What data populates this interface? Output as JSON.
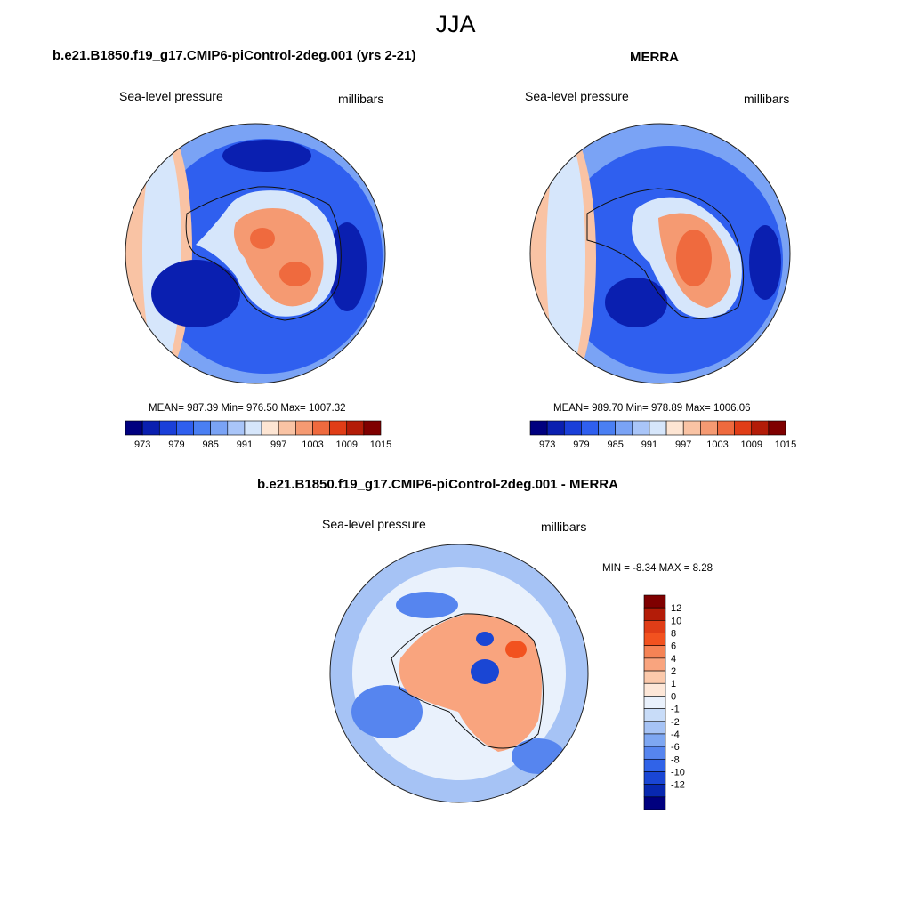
{
  "figure": {
    "title": "JJA"
  },
  "panels": {
    "model": {
      "title": "b.e21.B1850.f19_g17.CMIP6-piControl-2deg.001 (yrs 2-21)",
      "left_label": "Sea-level pressure",
      "right_label": "millibars",
      "stats_text": "MEAN= 987.39  Min= 976.50  Max= 1007.32"
    },
    "obs": {
      "title": "MERRA",
      "left_label": "Sea-level pressure",
      "right_label": "millibars",
      "stats_text": "MEAN= 989.70  Min= 978.89  Max= 1006.06"
    },
    "diff": {
      "title": "b.e21.B1850.f19_g17.CMIP6-piControl-2deg.001 - MERRA",
      "left_label": "Sea-level pressure",
      "right_label": "millibars",
      "stats_text": "MIN =  -8.34 MAX =   8.28"
    }
  },
  "colors": {
    "abs_scale": [
      "#00007f",
      "#0a1fb0",
      "#1a3fd9",
      "#2f5fef",
      "#4a7ff3",
      "#7aa3f5",
      "#a9c5f8",
      "#d6e6fb",
      "#fde5d3",
      "#f9c3a4",
      "#f59a72",
      "#ef6a3e",
      "#e03d17",
      "#b31c08",
      "#7f0000"
    ],
    "diff_scale": [
      "#7f0000",
      "#b31c08",
      "#e03d17",
      "#f2521f",
      "#f58355",
      "#f9a47e",
      "#fbc9ab",
      "#fde7d8",
      "#e9f1fc",
      "#c8dcf8",
      "#a6c3f5",
      "#7ea7f2",
      "#5685ef",
      "#3063e8",
      "#1a46d4",
      "#0828b0",
      "#00007f"
    ],
    "ocean_light": "#d6e6fb",
    "ocean_mid": "#7aa3f5",
    "ocean_deep": "#2f5fef",
    "high_low": "#f59a72",
    "high_core": "#ef6a3e"
  },
  "chart_data": [
    {
      "type": "heatmap",
      "name": "model",
      "title": "b.e21.B1850.f19_g17.CMIP6-piControl-2deg.001 (yrs 2-21)",
      "variable": "Sea-level pressure",
      "units": "millibars",
      "projection": "south polar stereographic",
      "stats": {
        "mean": 987.39,
        "min": 976.5,
        "max": 1007.32
      },
      "colorbar": {
        "labels": [
          "973",
          "979",
          "985",
          "991",
          "997",
          "1003",
          "1009",
          "1015"
        ],
        "levels": [
          970,
          973,
          976,
          979,
          982,
          985,
          988,
          991,
          994,
          997,
          1000,
          1003,
          1006,
          1009,
          1012,
          1015
        ]
      }
    },
    {
      "type": "heatmap",
      "name": "obs",
      "title": "MERRA",
      "variable": "Sea-level pressure",
      "units": "millibars",
      "projection": "south polar stereographic",
      "stats": {
        "mean": 989.7,
        "min": 978.89,
        "max": 1006.06
      },
      "colorbar": {
        "labels": [
          "973",
          "979",
          "985",
          "991",
          "997",
          "1003",
          "1009",
          "1015"
        ],
        "levels": [
          970,
          973,
          976,
          979,
          982,
          985,
          988,
          991,
          994,
          997,
          1000,
          1003,
          1006,
          1009,
          1012,
          1015
        ]
      }
    },
    {
      "type": "heatmap",
      "name": "difference",
      "title": "b.e21.B1850.f19_g17.CMIP6-piControl-2deg.001 - MERRA",
      "variable": "Sea-level pressure",
      "units": "millibars",
      "projection": "south polar stereographic",
      "stats": {
        "min": -8.34,
        "max": 8.28
      },
      "colorbar": {
        "labels": [
          "12",
          "10",
          "8",
          "6",
          "4",
          "2",
          "1",
          "0",
          "-1",
          "-2",
          "-4",
          "-6",
          "-8",
          "-10",
          "-12"
        ]
      }
    }
  ]
}
